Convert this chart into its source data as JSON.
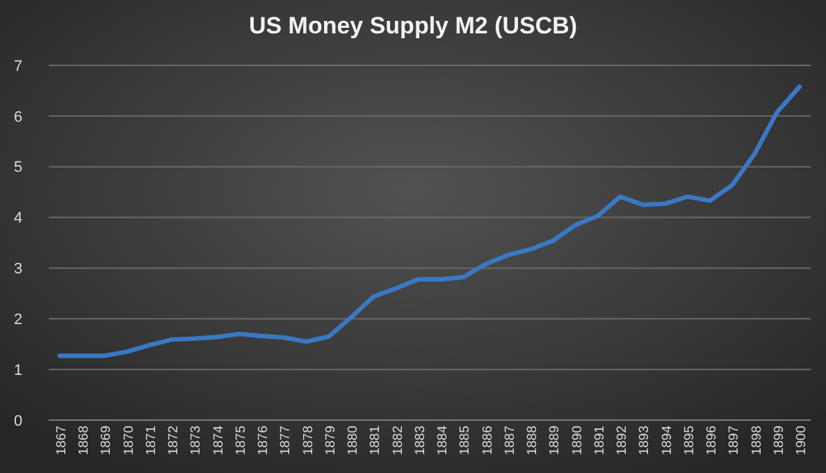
{
  "chart_data": {
    "type": "line",
    "title": "US Money Supply M2 (USCB)",
    "categories": [
      "1867",
      "1868",
      "1869",
      "1870",
      "1871",
      "1872",
      "1873",
      "1874",
      "1875",
      "1876",
      "1877",
      "1878",
      "1879",
      "1880",
      "1881",
      "1882",
      "1883",
      "1884",
      "1885",
      "1886",
      "1887",
      "1888",
      "1889",
      "1890",
      "1891",
      "1892",
      "1893",
      "1894",
      "1895",
      "1896",
      "1897",
      "1898",
      "1899",
      "1900"
    ],
    "series": [
      {
        "color": "#3a78c4",
        "values": [
          1.27,
          1.27,
          1.27,
          1.35,
          1.48,
          1.59,
          1.61,
          1.64,
          1.7,
          1.66,
          1.63,
          1.55,
          1.65,
          2.03,
          2.44,
          2.6,
          2.78,
          2.78,
          2.82,
          3.08,
          3.26,
          3.37,
          3.54,
          3.85,
          4.03,
          4.41,
          4.25,
          4.27,
          4.41,
          4.33,
          4.64,
          5.26,
          6.08,
          6.58
        ]
      }
    ],
    "ylim": [
      0,
      7
    ],
    "yticks": [
      0,
      1,
      2,
      3,
      4,
      5,
      6,
      7
    ],
    "grid": "y",
    "marker": "none",
    "line_style": "solid"
  }
}
